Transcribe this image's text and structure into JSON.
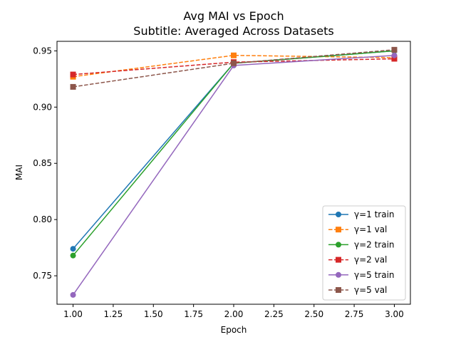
{
  "chart_data": {
    "type": "line",
    "title": "Avg MAI vs Epoch",
    "subtitle": "Subtitle: Averaged Across Datasets",
    "xlabel": "Epoch",
    "ylabel": "MAI",
    "x": [
      1.0,
      2.0,
      3.0
    ],
    "xlim": [
      0.9,
      3.1
    ],
    "ylim": [
      0.7247,
      0.9585
    ],
    "xticks": [
      1.0,
      1.25,
      1.5,
      1.75,
      2.0,
      2.25,
      2.5,
      2.75,
      3.0
    ],
    "yticks": [
      0.75,
      0.8,
      0.85,
      0.9,
      0.95
    ],
    "xtick_labels": [
      "1.00",
      "1.25",
      "1.50",
      "1.75",
      "2.00",
      "2.25",
      "2.50",
      "2.75",
      "3.00"
    ],
    "ytick_labels": [
      "0.75",
      "0.80",
      "0.85",
      "0.90",
      "0.95"
    ],
    "grid": false,
    "legend_position": "lower-right",
    "series": [
      {
        "name": "γ=1 train",
        "values": [
          0.774,
          0.939,
          0.95
        ],
        "color": "#1f77b4",
        "marker": "circle",
        "line": "solid"
      },
      {
        "name": "γ=1 val",
        "values": [
          0.927,
          0.946,
          0.944
        ],
        "color": "#ff7f0e",
        "marker": "square",
        "line": "dashed"
      },
      {
        "name": "γ=2 train",
        "values": [
          0.768,
          0.939,
          0.95
        ],
        "color": "#2ca02c",
        "marker": "circle",
        "line": "solid"
      },
      {
        "name": "γ=2 val",
        "values": [
          0.929,
          0.94,
          0.943
        ],
        "color": "#d62728",
        "marker": "square",
        "line": "dashed"
      },
      {
        "name": "γ=5 train",
        "values": [
          0.733,
          0.937,
          0.946
        ],
        "color": "#9467bd",
        "marker": "circle",
        "line": "solid"
      },
      {
        "name": "γ=5 val",
        "values": [
          0.918,
          0.939,
          0.951
        ],
        "color": "#8c564b",
        "marker": "square",
        "line": "dashed"
      }
    ]
  }
}
